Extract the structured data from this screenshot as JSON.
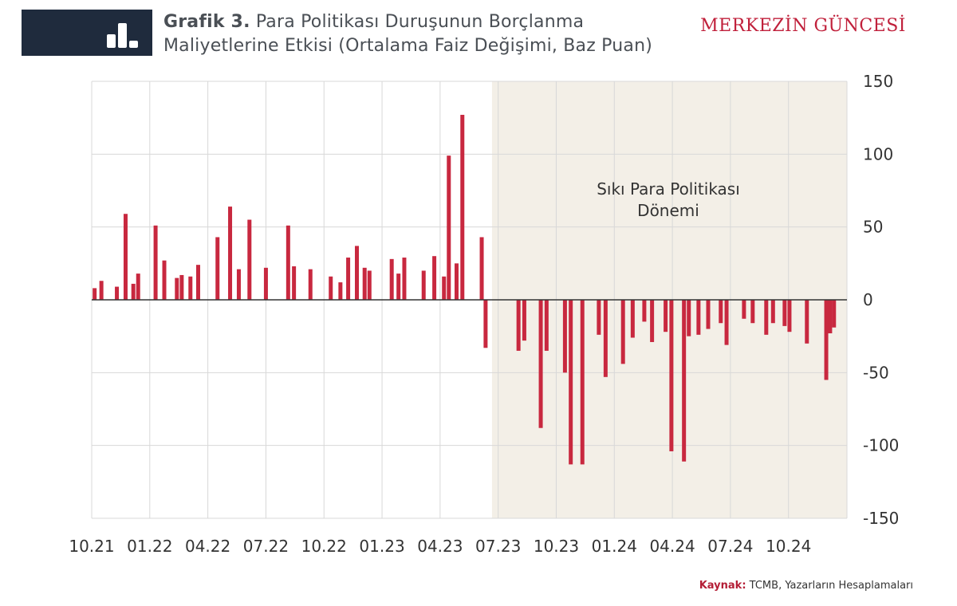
{
  "header": {
    "title_bold": "Grafik 3.",
    "title_line1": "Para Politikası Duruşunun Borçlanma",
    "title_line2": "Maliyetlerine Etkisi (Ortalama Faiz Değişimi, Baz Puan)",
    "brand": "MERKEZİN GÜNCESİ",
    "logo_icon": "bar-chart-icon"
  },
  "footer": {
    "source_label": "Kaynak:",
    "source_text": "TCMB, Yazarların Hesaplamaları"
  },
  "colors": {
    "bar": "#c8283f",
    "shade": "#f3efe7",
    "grid": "#d8d8d8",
    "logo_bg": "#1f2b3d"
  },
  "chart_data": {
    "type": "bar",
    "title": "Para Politikası Duruşunun Borçlanma Maliyetlerine Etkisi (Ortalama Faiz Değişimi, Baz Puan)",
    "x_ticks": [
      "10.21",
      "01.22",
      "04.22",
      "07.22",
      "10.22",
      "01.23",
      "04.23",
      "07.23",
      "10.23",
      "01.24",
      "04.24",
      "07.24",
      "10.24"
    ],
    "y_ticks": [
      150,
      100,
      50,
      0,
      -50,
      -100,
      -150
    ],
    "ylim": [
      -150,
      150
    ],
    "xlim": [
      0,
      38.5
    ],
    "grid": true,
    "shaded_region": {
      "from": 20.6,
      "to": 38.5,
      "label_line1": "Sıkı Para Politikası",
      "label_line2": "Dönemi"
    },
    "points": [
      {
        "t": 0.15,
        "v": 8
      },
      {
        "t": 0.5,
        "v": 13
      },
      {
        "t": 1.3,
        "v": 9
      },
      {
        "t": 1.75,
        "v": 59
      },
      {
        "t": 2.15,
        "v": 11
      },
      {
        "t": 2.4,
        "v": 18
      },
      {
        "t": 3.3,
        "v": 51
      },
      {
        "t": 3.75,
        "v": 27
      },
      {
        "t": 4.4,
        "v": 15
      },
      {
        "t": 4.65,
        "v": 17
      },
      {
        "t": 5.1,
        "v": 16
      },
      {
        "t": 5.5,
        "v": 24
      },
      {
        "t": 6.5,
        "v": 43
      },
      {
        "t": 7.15,
        "v": 64
      },
      {
        "t": 7.6,
        "v": 21
      },
      {
        "t": 8.15,
        "v": 55
      },
      {
        "t": 9.0,
        "v": 22
      },
      {
        "t": 10.15,
        "v": 51
      },
      {
        "t": 10.45,
        "v": 23
      },
      {
        "t": 11.3,
        "v": 21
      },
      {
        "t": 12.35,
        "v": 16
      },
      {
        "t": 12.85,
        "v": 12
      },
      {
        "t": 13.25,
        "v": 29
      },
      {
        "t": 13.7,
        "v": 37
      },
      {
        "t": 14.1,
        "v": 22
      },
      {
        "t": 14.35,
        "v": 20
      },
      {
        "t": 15.5,
        "v": 28
      },
      {
        "t": 15.85,
        "v": 18
      },
      {
        "t": 16.15,
        "v": 29
      },
      {
        "t": 17.15,
        "v": 20
      },
      {
        "t": 17.7,
        "v": 30
      },
      {
        "t": 18.2,
        "v": 16
      },
      {
        "t": 18.45,
        "v": 99
      },
      {
        "t": 18.85,
        "v": 25
      },
      {
        "t": 19.15,
        "v": 127
      },
      {
        "t": 20.15,
        "v": 43
      },
      {
        "t": 20.35,
        "v": -33
      },
      {
        "t": 22.05,
        "v": -35
      },
      {
        "t": 22.35,
        "v": -28
      },
      {
        "t": 23.2,
        "v": -88
      },
      {
        "t": 23.5,
        "v": -35
      },
      {
        "t": 24.45,
        "v": -50
      },
      {
        "t": 24.75,
        "v": -113
      },
      {
        "t": 25.35,
        "v": -113
      },
      {
        "t": 26.2,
        "v": -24
      },
      {
        "t": 26.55,
        "v": -53
      },
      {
        "t": 27.45,
        "v": -44
      },
      {
        "t": 27.95,
        "v": -26
      },
      {
        "t": 28.55,
        "v": -15
      },
      {
        "t": 28.95,
        "v": -29
      },
      {
        "t": 29.65,
        "v": -22
      },
      {
        "t": 29.95,
        "v": -104
      },
      {
        "t": 30.6,
        "v": -111
      },
      {
        "t": 30.85,
        "v": -25
      },
      {
        "t": 31.35,
        "v": -24
      },
      {
        "t": 31.85,
        "v": -20
      },
      {
        "t": 32.5,
        "v": -16
      },
      {
        "t": 32.8,
        "v": -31
      },
      {
        "t": 33.7,
        "v": -13
      },
      {
        "t": 34.15,
        "v": -16
      },
      {
        "t": 34.85,
        "v": -24
      },
      {
        "t": 35.2,
        "v": -16
      },
      {
        "t": 35.8,
        "v": -18
      },
      {
        "t": 36.05,
        "v": -22
      },
      {
        "t": 36.95,
        "v": -30
      },
      {
        "t": 37.95,
        "v": -55
      },
      {
        "t": 38.15,
        "v": -23
      },
      {
        "t": 38.35,
        "v": -19
      }
    ]
  }
}
